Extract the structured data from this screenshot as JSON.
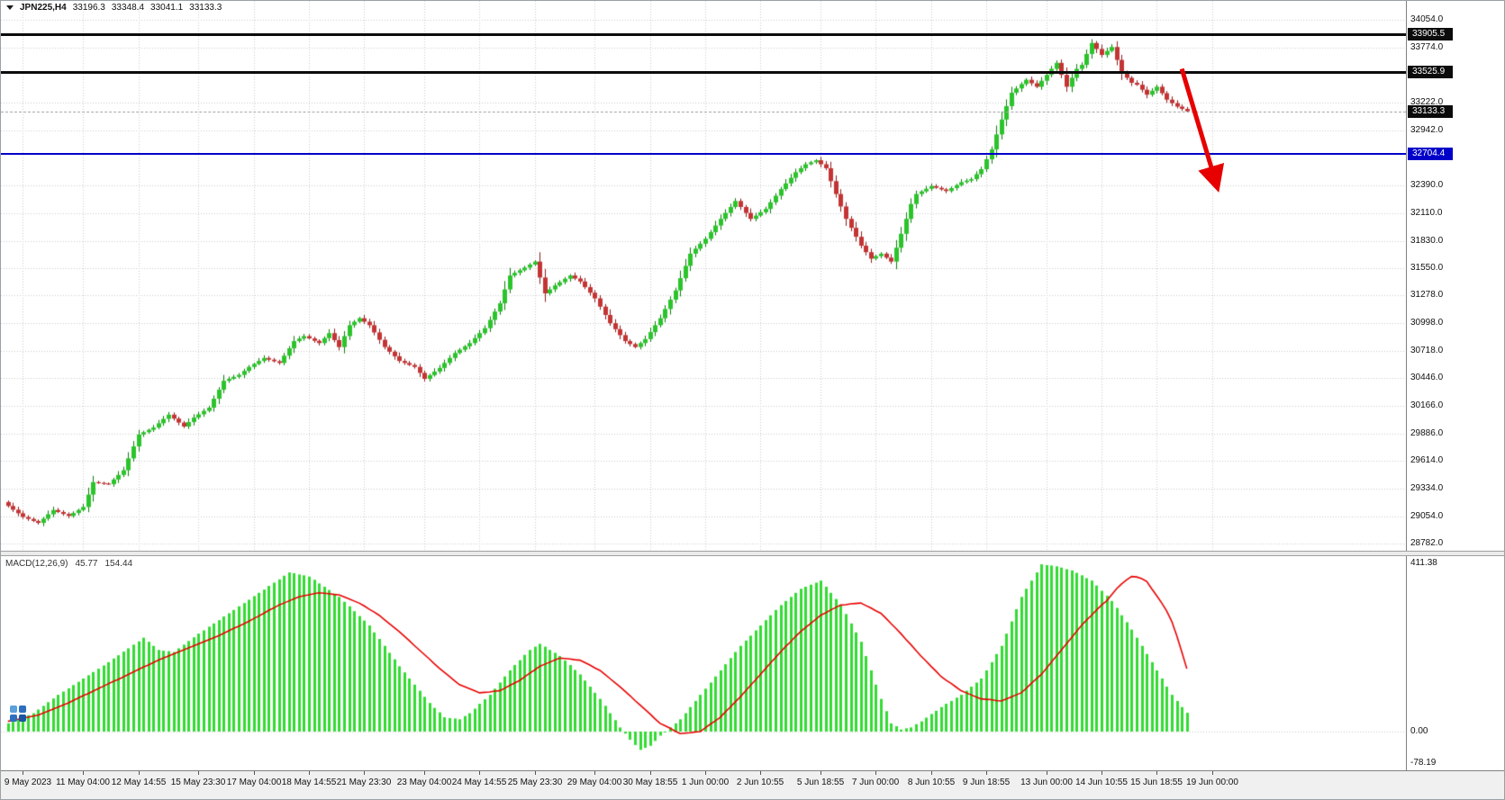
{
  "header": {
    "symbol": "JPN225,H4",
    "open": "33196.3",
    "high": "33348.4",
    "low": "33041.1",
    "close": "33133.3"
  },
  "indicator": {
    "label": "MACD(12,26,9)",
    "value1": "45.77",
    "value2": "154.44"
  },
  "colors": {
    "grid": "#CCCCCC",
    "candle_up": "#2BC42B",
    "candle_up_wick": "#0E7C0E",
    "candle_down": "#C43434",
    "candle_down_wick": "#8C1E1E",
    "macd_histogram": "#33DB33",
    "macd_signal": "#E80000",
    "level_black": "#0B0B0B",
    "level_blue": "#0000C8",
    "arrow": "#E60000",
    "axis_text": "#111111",
    "time_axis_bg": "#F0F0F0"
  },
  "price_axis": {
    "badges": [
      {
        "text": "33905.5",
        "color": "#0B0B0B",
        "name": "upper-resistance"
      },
      {
        "text": "33525.9",
        "color": "#0B0B0B",
        "name": "lower-resistance"
      },
      {
        "text": "33133.3",
        "color": "#0B0B0B",
        "name": "bid-price"
      },
      {
        "text": "32704.4",
        "color": "#0000C8",
        "name": "support-level"
      }
    ]
  },
  "levels": [
    {
      "value": 33905.5,
      "color": "#0B0B0B",
      "thickness": 3,
      "name": "upper-resistance"
    },
    {
      "value": 33525.9,
      "color": "#0B0B0B",
      "thickness": 3,
      "name": "lower-resistance"
    },
    {
      "value": 32704.4,
      "color": "#0000C8",
      "thickness": 2,
      "name": "support-level"
    }
  ],
  "bid_line": {
    "value": 33133.3
  },
  "chart_data": [
    {
      "type": "candlestick",
      "symbol": "JPN225",
      "timeframe": "H4",
      "ohlc_display": {
        "open": 33196.3,
        "high": 33348.4,
        "low": 33041.1,
        "close": 33133.3
      },
      "y_range": {
        "min": 28710,
        "max": 34244
      },
      "y_ticks": [
        "34054.0",
        "33774.0",
        "33222.0",
        "32942.0",
        "32390.0",
        "32110.0",
        "31830.0",
        "31550.0",
        "31278.0",
        "30998.0",
        "30718.0",
        "30446.0",
        "30166.0",
        "29886.0",
        "29614.0",
        "29334.0",
        "29054.0",
        "28782.0"
      ],
      "x_ticks": [
        {
          "text": "9 May 2023",
          "bar": 3
        },
        {
          "text": "11 May 04:00",
          "bar": 15
        },
        {
          "text": "12 May 14:55",
          "bar": 26
        },
        {
          "text": "15 May 23:30",
          "bar": 38
        },
        {
          "text": "17 May 04:00",
          "bar": 49
        },
        {
          "text": "18 May 14:55",
          "bar": 60
        },
        {
          "text": "21 May 23:30",
          "bar": 71
        },
        {
          "text": "23 May 04:00",
          "bar": 83
        },
        {
          "text": "24 May 14:55",
          "bar": 94
        },
        {
          "text": "25 May 23:30",
          "bar": 105
        },
        {
          "text": "29 May 04:00",
          "bar": 117
        },
        {
          "text": "30 May 18:55",
          "bar": 128
        },
        {
          "text": "1 Jun 00:00",
          "bar": 139
        },
        {
          "text": "2 Jun 10:55",
          "bar": 150
        },
        {
          "text": "5 Jun 18:55",
          "bar": 162
        },
        {
          "text": "7 Jun 00:00",
          "bar": 173
        },
        {
          "text": "8 Jun 10:55",
          "bar": 184
        },
        {
          "text": "9 Jun 18:55",
          "bar": 195
        },
        {
          "text": "13 Jun 00:00",
          "bar": 207
        },
        {
          "text": "14 Jun 10:55",
          "bar": 218
        },
        {
          "text": "15 Jun 18:55",
          "bar": 229
        },
        {
          "text": "19 Jun 00:00",
          "bar": 240
        }
      ],
      "horizontal_levels": [
        33905.5,
        33525.9,
        32704.4
      ],
      "annotation_arrow": {
        "from_bar": 234,
        "from_price": 33560,
        "to_bar": 241,
        "to_price": 32380,
        "color": "#E60000"
      },
      "first_open": 29200,
      "closes": [
        29160,
        29123,
        29087,
        29050,
        29030,
        29010,
        28990,
        29033,
        29077,
        29120,
        29100,
        29080,
        29060,
        29090,
        29120,
        29150,
        29275,
        29400,
        29393,
        29387,
        29380,
        29427,
        29473,
        29520,
        29640,
        29760,
        29880,
        29903,
        29927,
        29950,
        29993,
        30037,
        30080,
        30040,
        30000,
        29960,
        30005,
        30050,
        30083,
        30117,
        30150,
        30240,
        30330,
        30420,
        30440,
        30460,
        30480,
        30520,
        30560,
        30590,
        30620,
        30650,
        30633,
        30617,
        30600,
        30673,
        30747,
        30820,
        30845,
        30870,
        30847,
        30823,
        30800,
        30850,
        30900,
        30830,
        30760,
        30870,
        30980,
        31015,
        31050,
        31015,
        30980,
        30907,
        30833,
        30760,
        30713,
        30667,
        30620,
        30600,
        30580,
        30560,
        30500,
        30440,
        30477,
        30513,
        30550,
        30600,
        30650,
        30700,
        30733,
        30767,
        30800,
        30850,
        30900,
        30950,
        31033,
        31117,
        31200,
        31340,
        31480,
        31507,
        31533,
        31560,
        31590,
        31620,
        31460,
        31300,
        31340,
        31380,
        31413,
        31447,
        31480,
        31450,
        31420,
        31363,
        31307,
        31250,
        31167,
        31083,
        31000,
        30940,
        30880,
        30820,
        30790,
        30760,
        30800,
        30840,
        30910,
        30980,
        31050,
        31143,
        31237,
        31330,
        31453,
        31577,
        31700,
        31750,
        31800,
        31850,
        31917,
        31983,
        32050,
        32110,
        32170,
        32230,
        32170,
        32110,
        32050,
        32083,
        32117,
        32150,
        32217,
        32283,
        32350,
        32407,
        32463,
        32520,
        32560,
        32600,
        32620,
        32640,
        32600,
        32560,
        32430,
        32300,
        32175,
        32050,
        31960,
        31870,
        31780,
        31715,
        31650,
        31675,
        31700,
        31660,
        31620,
        31760,
        31900,
        32050,
        32200,
        32300,
        32327,
        32353,
        32380,
        32363,
        32347,
        32330,
        32360,
        32390,
        32420,
        32435,
        32450,
        32500,
        32550,
        32650,
        32750,
        32900,
        33050,
        33185,
        33320,
        33363,
        33407,
        33450,
        33415,
        33380,
        33440,
        33500,
        33560,
        33620,
        33500,
        33380,
        33470,
        33560,
        33600,
        33710,
        33820,
        33760,
        33700,
        33740,
        33780,
        33650,
        33520,
        33470,
        33420,
        33400,
        33350,
        33300,
        33340,
        33380,
        33315,
        33250,
        33215,
        33180,
        33157,
        33133
      ]
    },
    {
      "type": "macd",
      "label": "MACD(12,26,9)",
      "current_values": {
        "macd": 45.77,
        "signal": 154.44
      },
      "y_range": {
        "min": -95,
        "max": 430
      },
      "y_ticks": [
        "411.38",
        "0.00",
        "-78.19"
      ],
      "histogram": [
        20,
        25,
        30,
        35,
        40,
        45,
        54,
        63,
        72,
        81,
        90,
        98,
        106,
        114,
        122,
        130,
        138,
        146,
        154,
        162,
        170,
        179,
        187,
        196,
        204,
        213,
        221,
        230,
        220,
        210,
        200,
        198,
        197,
        195,
        204,
        213,
        222,
        231,
        240,
        248,
        257,
        265,
        273,
        282,
        290,
        298,
        307,
        315,
        323,
        332,
        340,
        348,
        357,
        365,
        373,
        382,
        390,
        388,
        385,
        383,
        380,
        372,
        363,
        355,
        347,
        338,
        330,
        318,
        307,
        295,
        283,
        272,
        260,
        243,
        227,
        210,
        193,
        177,
        160,
        145,
        130,
        115,
        100,
        85,
        70,
        58,
        47,
        35,
        33,
        32,
        30,
        38,
        45,
        56,
        68,
        79,
        90,
        105,
        120,
        135,
        150,
        163,
        175,
        188,
        200,
        208,
        215,
        208,
        200,
        193,
        185,
        174,
        163,
        151,
        140,
        125,
        110,
        95,
        80,
        63,
        45,
        28,
        10,
        -5,
        -20,
        -33,
        -45,
        -40,
        -35,
        -23,
        -10,
        0,
        10,
        20,
        30,
        45,
        60,
        75,
        90,
        105,
        120,
        135,
        150,
        165,
        180,
        195,
        210,
        223,
        235,
        248,
        260,
        273,
        285,
        298,
        310,
        320,
        330,
        340,
        350,
        355,
        360,
        365,
        370,
        355,
        340,
        325,
        310,
        288,
        265,
        243,
        220,
        185,
        150,
        115,
        80,
        50,
        20,
        13,
        5,
        8,
        10,
        18,
        25,
        34,
        43,
        51,
        60,
        68,
        75,
        83,
        90,
        100,
        110,
        120,
        130,
        150,
        170,
        190,
        210,
        240,
        270,
        300,
        330,
        350,
        370,
        390,
        410,
        408,
        407,
        405,
        402,
        398,
        395,
        389,
        383,
        376,
        370,
        358,
        345,
        333,
        320,
        303,
        285,
        268,
        250,
        230,
        210,
        190,
        170,
        150,
        130,
        110,
        90,
        75,
        60,
        46
      ],
      "signal": [
        25,
        28,
        30,
        33,
        35,
        38,
        40,
        45,
        50,
        55,
        60,
        65,
        70,
        76,
        82,
        88,
        93,
        99,
        105,
        111,
        117,
        123,
        128,
        134,
        140,
        146,
        152,
        158,
        163,
        169,
        175,
        180,
        185,
        190,
        195,
        200,
        205,
        210,
        215,
        220,
        225,
        230,
        235,
        241,
        247,
        253,
        258,
        264,
        270,
        277,
        283,
        290,
        297,
        303,
        310,
        315,
        320,
        325,
        330,
        333,
        335,
        338,
        340,
        339,
        338,
        336,
        335,
        330,
        325,
        320,
        315,
        308,
        300,
        293,
        285,
        275,
        265,
        255,
        245,
        234,
        223,
        211,
        200,
        189,
        178,
        166,
        155,
        145,
        135,
        125,
        115,
        110,
        105,
        100,
        95,
        96,
        97,
        99,
        100,
        106,
        113,
        119,
        125,
        134,
        143,
        151,
        160,
        165,
        170,
        175,
        180,
        179,
        178,
        176,
        175,
        169,
        163,
        156,
        150,
        140,
        130,
        120,
        110,
        99,
        88,
        76,
        65,
        54,
        43,
        31,
        20,
        14,
        8,
        1,
        -5,
        -4,
        -3,
        -1,
        0,
        9,
        18,
        26,
        35,
        48,
        60,
        73,
        85,
        99,
        113,
        126,
        140,
        154,
        168,
        181,
        195,
        208,
        220,
        233,
        245,
        255,
        265,
        275,
        285,
        291,
        298,
        304,
        310,
        311,
        313,
        314,
        315,
        309,
        303,
        296,
        290,
        278,
        265,
        253,
        240,
        226,
        213,
        199,
        185,
        173,
        160,
        148,
        135,
        126,
        118,
        109,
        100,
        95,
        90,
        85,
        80,
        79,
        78,
        76,
        75,
        80,
        85,
        90,
        95,
        106,
        118,
        129,
        140,
        155,
        170,
        185,
        200,
        215,
        230,
        245,
        260,
        273,
        285,
        298,
        310,
        320,
        335,
        350,
        362,
        372,
        380,
        379,
        375,
        368,
        350,
        333,
        315,
        295,
        270,
        235,
        195,
        154
      ]
    }
  ]
}
